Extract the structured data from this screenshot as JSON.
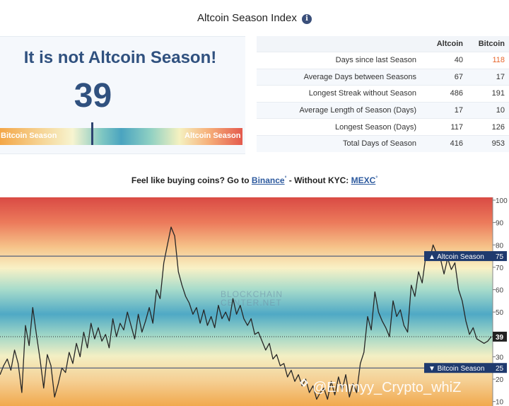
{
  "header": {
    "title": "Altcoin Season Index",
    "info_icon": "info-icon"
  },
  "index_card": {
    "headline": "It is not Altcoin Season!",
    "value": "39",
    "left_label": "Bitcoin Season",
    "right_label": "Altcoin Season"
  },
  "stats": {
    "columns": [
      "",
      "Altcoin",
      "Bitcoin"
    ],
    "rows": [
      {
        "label": "Days since last Season",
        "altcoin": "40",
        "bitcoin": "118"
      },
      {
        "label": "Average Days between Seasons",
        "altcoin": "67",
        "bitcoin": "17"
      },
      {
        "label": "Longest Streak without Season",
        "altcoin": "486",
        "bitcoin": "191"
      },
      {
        "label": "Average Length of Season (Days)",
        "altcoin": "17",
        "bitcoin": "10"
      },
      {
        "label": "Longest Season (Days)",
        "altcoin": "117",
        "bitcoin": "126"
      },
      {
        "label": "Total Days of Season",
        "altcoin": "416",
        "bitcoin": "953"
      }
    ],
    "highlight_color": "#e8672d"
  },
  "promo": {
    "prefix": "Feel like buying coins? Go to",
    "link1": "Binance",
    "middle": "- Without KYC:",
    "link2": "MEXC",
    "mark": "°"
  },
  "chart_data": {
    "type": "line",
    "y_ticks": [
      10,
      20,
      30,
      40,
      50,
      60,
      70,
      80,
      90,
      100
    ],
    "ylim": [
      8,
      100
    ],
    "grid": false,
    "watermark": "BLOCKCHAIN CENTER.NET",
    "thresholds": [
      {
        "label": "Altcoin Season",
        "value": 75,
        "arrow": "▲"
      },
      {
        "label": "Bitcoin Season",
        "value": 25,
        "arrow": "▼"
      }
    ],
    "current_value": 39,
    "series": [
      {
        "values": [
          22,
          26,
          29,
          24,
          33,
          27,
          14,
          44,
          35,
          52,
          40,
          29,
          16,
          31,
          26,
          12,
          18,
          25,
          23,
          32,
          27,
          36,
          30,
          41,
          34,
          45,
          38,
          43,
          37,
          40,
          34,
          47,
          39,
          45,
          42,
          50,
          44,
          38,
          49,
          41,
          46,
          52,
          45,
          60,
          56,
          72,
          80,
          88,
          84,
          68,
          62,
          57,
          54,
          49,
          52,
          45,
          51,
          44,
          48,
          43,
          53,
          47,
          50,
          46,
          56,
          49,
          53,
          47,
          44,
          47,
          40,
          41,
          37,
          33,
          36,
          29,
          31,
          26,
          27,
          21,
          24,
          19,
          22,
          17,
          20,
          14,
          17,
          11,
          14,
          16,
          11,
          19,
          13,
          21,
          15,
          22,
          12,
          18,
          14,
          27,
          32,
          48,
          42,
          59,
          50,
          46,
          43,
          39,
          55,
          48,
          51,
          44,
          41,
          62,
          57,
          68,
          63,
          75,
          73,
          80,
          76,
          74,
          67,
          74,
          69,
          72,
          60,
          55,
          46,
          40,
          43,
          38,
          37,
          36,
          37,
          39
        ]
      }
    ]
  },
  "footer": {
    "handle": "@Emmyy_Crypto_whiZ",
    "brand_icon": "binance-logo-icon"
  }
}
